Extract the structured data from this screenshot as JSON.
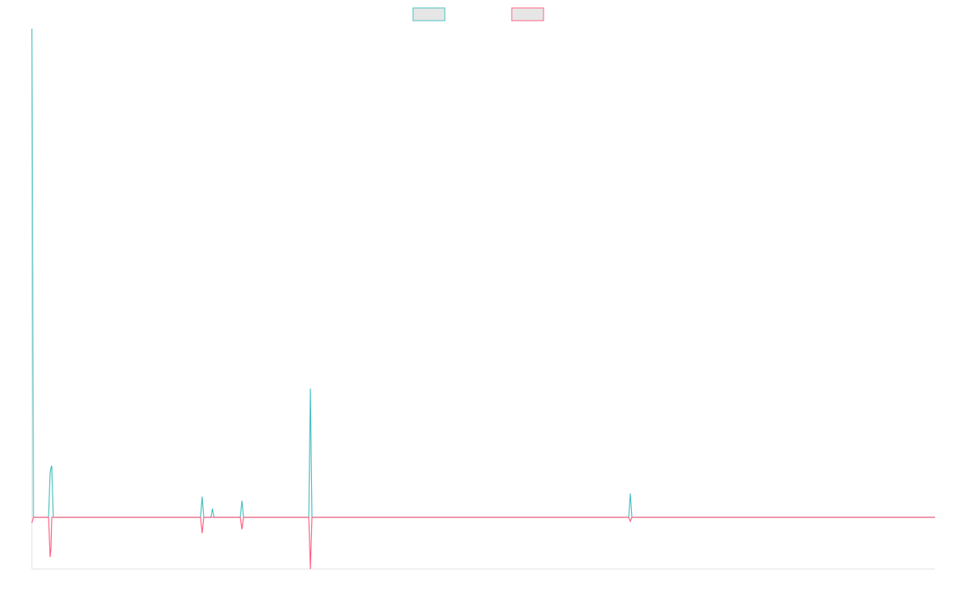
{
  "chart_data": {
    "type": "line",
    "x": [
      0,
      2,
      21,
      23,
      24,
      25,
      27,
      212,
      214,
      216,
      225,
      227,
      229,
      262,
      264,
      266,
      348,
      350,
      352,
      750,
      752,
      754,
      1135
    ],
    "xlim": [
      0,
      1135
    ],
    "ylim": [
      -65,
      615
    ],
    "legend": "top",
    "series": [
      {
        "color": "#4bc0c0",
        "values": [
          615,
          0,
          0,
          56,
          62,
          65,
          0,
          0,
          26,
          0,
          0,
          11,
          0,
          0,
          21,
          0,
          0,
          162,
          0,
          0,
          30,
          0,
          0
        ]
      },
      {
        "color": "#ff6384",
        "values": [
          -7,
          0,
          0,
          -50,
          -40,
          0,
          0,
          0,
          -20,
          0,
          0,
          0,
          0,
          0,
          -15,
          0,
          0,
          -65,
          0,
          0,
          -5,
          0,
          0
        ]
      }
    ]
  }
}
